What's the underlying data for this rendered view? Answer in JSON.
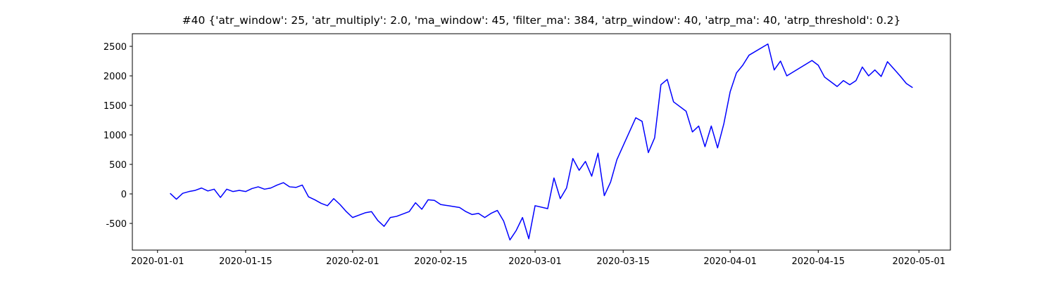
{
  "chart_data": {
    "type": "line",
    "title": "#40 {'atr_window': 25, 'atr_multiply': 2.0, 'ma_window': 45, 'filter_ma': 384, 'atrp_window': 40, 'atrp_ma': 40, 'atrp_threshold': 0.2}",
    "x": [
      "2020-01-03",
      "2020-01-04",
      "2020-01-05",
      "2020-01-06",
      "2020-01-07",
      "2020-01-08",
      "2020-01-09",
      "2020-01-10",
      "2020-01-11",
      "2020-01-12",
      "2020-01-13",
      "2020-01-14",
      "2020-01-15",
      "2020-01-16",
      "2020-01-17",
      "2020-01-18",
      "2020-01-19",
      "2020-01-20",
      "2020-01-21",
      "2020-01-22",
      "2020-01-23",
      "2020-01-24",
      "2020-01-25",
      "2020-01-26",
      "2020-01-27",
      "2020-01-28",
      "2020-01-29",
      "2020-01-30",
      "2020-01-31",
      "2020-02-01",
      "2020-02-03",
      "2020-02-04",
      "2020-02-05",
      "2020-02-06",
      "2020-02-07",
      "2020-02-08",
      "2020-02-10",
      "2020-02-11",
      "2020-02-12",
      "2020-02-13",
      "2020-02-14",
      "2020-02-15",
      "2020-02-18",
      "2020-02-19",
      "2020-02-20",
      "2020-02-21",
      "2020-02-22",
      "2020-02-23",
      "2020-02-24",
      "2020-02-25",
      "2020-02-26",
      "2020-02-27",
      "2020-02-28",
      "2020-02-29",
      "2020-03-01",
      "2020-03-03",
      "2020-03-04",
      "2020-03-05",
      "2020-03-06",
      "2020-03-07",
      "2020-03-08",
      "2020-03-09",
      "2020-03-10",
      "2020-03-11",
      "2020-03-12",
      "2020-03-13",
      "2020-03-14",
      "2020-03-17",
      "2020-03-18",
      "2020-03-19",
      "2020-03-20",
      "2020-03-21",
      "2020-03-22",
      "2020-03-23",
      "2020-03-25",
      "2020-03-26",
      "2020-03-27",
      "2020-03-28",
      "2020-03-29",
      "2020-03-30",
      "2020-03-31",
      "2020-04-01",
      "2020-04-02",
      "2020-04-03",
      "2020-04-04",
      "2020-04-07",
      "2020-04-08",
      "2020-04-09",
      "2020-04-10",
      "2020-04-14",
      "2020-04-15",
      "2020-04-16",
      "2020-04-17",
      "2020-04-18",
      "2020-04-19",
      "2020-04-20",
      "2020-04-21",
      "2020-04-22",
      "2020-04-23",
      "2020-04-24",
      "2020-04-25",
      "2020-04-26",
      "2020-04-27",
      "2020-04-28",
      "2020-04-29",
      "2020-04-30"
    ],
    "series": [
      {
        "color": "#0000ff",
        "values": [
          10,
          -90,
          10,
          40,
          60,
          100,
          50,
          80,
          -60,
          80,
          40,
          60,
          40,
          90,
          120,
          80,
          100,
          150,
          190,
          120,
          110,
          150,
          -50,
          -100,
          -160,
          -200,
          -80,
          -180,
          -300,
          -400,
          -320,
          -300,
          -450,
          -550,
          -400,
          -380,
          -300,
          -150,
          -260,
          -100,
          -110,
          -180,
          -230,
          -300,
          -350,
          -330,
          -400,
          -330,
          -280,
          -460,
          -780,
          -620,
          -400,
          -760,
          -200,
          -250,
          270,
          -80,
          100,
          600,
          400,
          550,
          300,
          690,
          -30,
          200,
          580,
          1290,
          1230,
          700,
          950,
          1850,
          1940,
          1560,
          1400,
          1050,
          1150,
          800,
          1150,
          780,
          1190,
          1730,
          2050,
          2180,
          2350,
          2540,
          2100,
          2250,
          2000,
          2260,
          2180,
          1980,
          1900,
          1820,
          1920,
          1850,
          1920,
          2150,
          2000,
          2100,
          1990,
          2240,
          2120,
          2000,
          1870,
          1800
        ]
      }
    ],
    "xlim": [
      "2019-12-28",
      "2020-05-06"
    ],
    "xticks": [
      "2020-01-01",
      "2020-01-15",
      "2020-02-01",
      "2020-02-15",
      "2020-03-01",
      "2020-03-15",
      "2020-04-01",
      "2020-04-15",
      "2020-05-01"
    ],
    "ylim": [
      -952,
      2714
    ],
    "yticks": [
      -500,
      0,
      500,
      1000,
      1500,
      2000,
      2500
    ]
  }
}
